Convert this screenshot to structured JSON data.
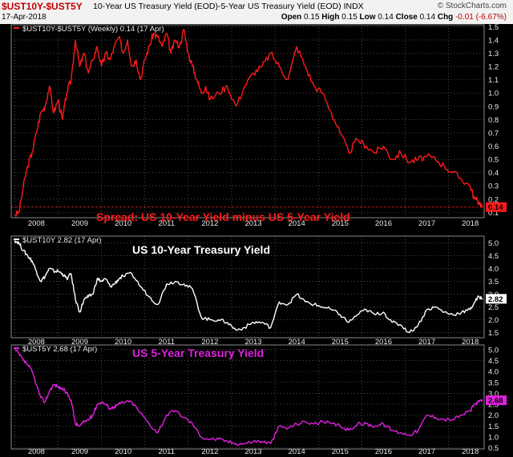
{
  "header": {
    "symbol": "$UST10Y-$UST5Y",
    "description": "10-Year US Treasury Yield (EOD)-5-Year US Treasury Yield (EOD)  INDX",
    "date": "17-Apr-2018",
    "credit": "© StockCharts.com",
    "open_label": "Open",
    "open": "0.15",
    "high_label": "High",
    "high": "0.15",
    "low_label": "Low",
    "low": "0.14",
    "close_label": "Close",
    "close": "0.14",
    "chg_label": "Chg",
    "chg": "-0.01 (-6.67%)"
  },
  "colors": {
    "spread": "#ff1a1a",
    "ust10y": "#ffffff",
    "ust5y": "#e020e0",
    "grid": "#7a7a7a"
  },
  "chart_data": [
    {
      "type": "line",
      "name": "spread",
      "legend": "$UST10Y-$UST5Y (Weekly) 0.14 (17 Apr)",
      "annotation": "Spread: US 10-Year Yield minus US 5-Year Yield",
      "last_value": "0.14",
      "ylim": [
        0.06,
        1.52
      ],
      "yticks": [
        "0.1",
        "0.2",
        "0.3",
        "0.4",
        "0.5",
        "0.6",
        "0.7",
        "0.8",
        "0.9",
        "1.0",
        "1.1",
        "1.2",
        "1.3",
        "1.4",
        "1.5"
      ],
      "reference_line": 0.14,
      "x": [
        2007.5,
        2007.6,
        2007.7,
        2007.8,
        2007.9,
        2008.0,
        2008.1,
        2008.2,
        2008.3,
        2008.4,
        2008.5,
        2008.6,
        2008.7,
        2008.8,
        2008.9,
        2009.0,
        2009.1,
        2009.2,
        2009.3,
        2009.4,
        2009.5,
        2009.6,
        2009.7,
        2009.8,
        2009.9,
        2010.0,
        2010.1,
        2010.2,
        2010.3,
        2010.4,
        2010.5,
        2010.6,
        2010.7,
        2010.8,
        2010.9,
        2011.0,
        2011.1,
        2011.2,
        2011.3,
        2011.4,
        2011.5,
        2011.6,
        2011.7,
        2011.8,
        2011.9,
        2012.0,
        2012.2,
        2012.4,
        2012.6,
        2012.8,
        2013.0,
        2013.2,
        2013.4,
        2013.6,
        2013.8,
        2014.0,
        2014.2,
        2014.4,
        2014.6,
        2014.8,
        2015.0,
        2015.2,
        2015.4,
        2015.6,
        2015.8,
        2016.0,
        2016.2,
        2016.4,
        2016.6,
        2016.8,
        2017.0,
        2017.2,
        2017.4,
        2017.6,
        2017.8,
        2018.0,
        2018.1,
        2018.2,
        2018.29
      ],
      "y": [
        0.08,
        0.1,
        0.3,
        0.45,
        0.55,
        0.7,
        0.85,
        0.9,
        1.05,
        0.85,
        0.95,
        0.8,
        1.0,
        1.1,
        1.4,
        1.2,
        1.3,
        1.15,
        1.25,
        1.35,
        1.2,
        1.3,
        1.25,
        1.35,
        1.42,
        1.3,
        1.4,
        1.2,
        1.25,
        1.1,
        1.25,
        1.35,
        1.45,
        1.42,
        1.35,
        1.45,
        1.3,
        1.4,
        1.35,
        1.48,
        1.3,
        1.2,
        1.1,
        1.0,
        1.05,
        0.95,
        1.0,
        1.05,
        0.9,
        1.05,
        1.15,
        1.2,
        1.3,
        1.2,
        1.1,
        1.35,
        1.2,
        1.05,
        1.0,
        0.85,
        0.7,
        0.55,
        0.65,
        0.6,
        0.55,
        0.6,
        0.5,
        0.55,
        0.48,
        0.5,
        0.52,
        0.5,
        0.45,
        0.4,
        0.35,
        0.3,
        0.2,
        0.18,
        0.14
      ]
    },
    {
      "type": "line",
      "name": "ust10y",
      "legend": "$UST10Y 2.82 (17 Apr)",
      "annotation": "US 10-Year Treasury Yield",
      "last_value": "2.82",
      "ylim": [
        1.3,
        5.3
      ],
      "yticks": [
        "1.5",
        "2.0",
        "2.5",
        "3.0",
        "3.5",
        "4.0",
        "4.5",
        "5.0"
      ],
      "x": [
        2007.5,
        2007.6,
        2007.7,
        2007.8,
        2007.9,
        2008.0,
        2008.1,
        2008.2,
        2008.3,
        2008.4,
        2008.5,
        2008.6,
        2008.7,
        2008.8,
        2008.9,
        2009.0,
        2009.1,
        2009.2,
        2009.3,
        2009.4,
        2009.5,
        2009.6,
        2009.7,
        2009.8,
        2009.9,
        2010.0,
        2010.2,
        2010.4,
        2010.6,
        2010.8,
        2011.0,
        2011.2,
        2011.4,
        2011.6,
        2011.8,
        2012.0,
        2012.2,
        2012.4,
        2012.6,
        2012.8,
        2013.0,
        2013.2,
        2013.4,
        2013.6,
        2013.8,
        2014.0,
        2014.2,
        2014.4,
        2014.6,
        2014.8,
        2015.0,
        2015.2,
        2015.4,
        2015.6,
        2015.8,
        2016.0,
        2016.2,
        2016.4,
        2016.6,
        2016.8,
        2017.0,
        2017.2,
        2017.4,
        2017.6,
        2017.8,
        2018.0,
        2018.1,
        2018.2,
        2018.29
      ],
      "y": [
        5.1,
        5.0,
        4.7,
        4.5,
        4.3,
        3.9,
        3.5,
        3.7,
        4.0,
        3.9,
        3.9,
        3.8,
        3.6,
        3.8,
        2.8,
        2.3,
        2.8,
        2.9,
        3.0,
        3.6,
        3.5,
        3.6,
        3.3,
        3.4,
        3.6,
        3.7,
        3.8,
        3.3,
        2.9,
        2.6,
        3.4,
        3.5,
        3.4,
        3.2,
        2.1,
        2.0,
        2.0,
        1.9,
        1.6,
        1.7,
        1.9,
        1.9,
        1.7,
        2.7,
        2.6,
        3.0,
        2.7,
        2.6,
        2.5,
        2.4,
        2.2,
        1.9,
        2.2,
        2.4,
        2.2,
        2.3,
        1.9,
        1.8,
        1.5,
        1.8,
        2.4,
        2.5,
        2.3,
        2.2,
        2.3,
        2.4,
        2.7,
        2.9,
        2.82
      ]
    },
    {
      "type": "line",
      "name": "ust5y",
      "legend": "$UST5Y 2.68 (17 Apr)",
      "annotation": "US 5-Year Treasury Yield",
      "last_value": "2.68",
      "ylim": [
        0.45,
        5.25
      ],
      "yticks": [
        "0.5",
        "1.0",
        "1.5",
        "2.0",
        "2.5",
        "3.0",
        "3.5",
        "4.0",
        "4.5",
        "5.0"
      ],
      "x": [
        2007.5,
        2007.6,
        2007.7,
        2007.8,
        2007.9,
        2008.0,
        2008.1,
        2008.2,
        2008.3,
        2008.4,
        2008.5,
        2008.6,
        2008.7,
        2008.8,
        2008.9,
        2009.0,
        2009.1,
        2009.2,
        2009.3,
        2009.4,
        2009.5,
        2009.6,
        2009.7,
        2009.8,
        2009.9,
        2010.0,
        2010.2,
        2010.4,
        2010.6,
        2010.8,
        2011.0,
        2011.2,
        2011.4,
        2011.6,
        2011.8,
        2012.0,
        2012.2,
        2012.4,
        2012.6,
        2012.8,
        2013.0,
        2013.2,
        2013.4,
        2013.6,
        2013.8,
        2014.0,
        2014.2,
        2014.4,
        2014.6,
        2014.8,
        2015.0,
        2015.2,
        2015.4,
        2015.6,
        2015.8,
        2016.0,
        2016.2,
        2016.4,
        2016.6,
        2016.8,
        2017.0,
        2017.2,
        2017.4,
        2017.6,
        2017.8,
        2018.0,
        2018.1,
        2018.2,
        2018.29
      ],
      "y": [
        5.0,
        4.8,
        4.5,
        4.3,
        4.0,
        3.4,
        2.8,
        2.6,
        3.1,
        3.4,
        3.3,
        3.2,
        3.0,
        2.7,
        1.6,
        1.5,
        1.7,
        1.8,
        2.0,
        2.5,
        2.6,
        2.5,
        2.3,
        2.4,
        2.5,
        2.6,
        2.6,
        2.1,
        1.6,
        1.2,
        2.0,
        2.2,
        1.9,
        1.6,
        1.0,
        0.9,
        0.9,
        0.8,
        0.7,
        0.7,
        0.8,
        0.8,
        0.7,
        1.5,
        1.4,
        1.6,
        1.7,
        1.6,
        1.7,
        1.6,
        1.5,
        1.3,
        1.6,
        1.6,
        1.5,
        1.6,
        1.3,
        1.2,
        1.1,
        1.3,
        2.0,
        1.9,
        1.8,
        1.8,
        2.0,
        2.2,
        2.5,
        2.6,
        2.68
      ]
    }
  ],
  "x_axis": {
    "xlim": [
      2007.42,
      2018.32
    ],
    "ticks": [
      "2008",
      "2009",
      "2010",
      "2011",
      "2012",
      "2013",
      "2014",
      "2015",
      "2016",
      "2017",
      "2018"
    ]
  }
}
